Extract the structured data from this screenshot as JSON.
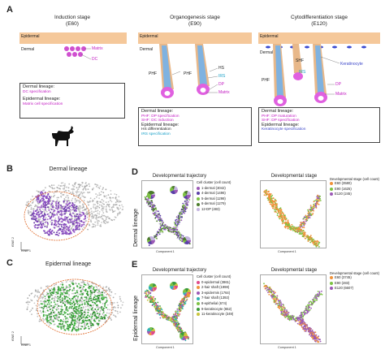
{
  "panels": {
    "a": "A",
    "b": "B",
    "c": "C",
    "d": "D",
    "e": "E"
  },
  "stages": [
    {
      "title": "Induction stage",
      "sub": "(E60)"
    },
    {
      "title": "Organogenesis stage",
      "sub": "(E90)"
    },
    {
      "title": "Cytodifferentiation stage",
      "sub": "(E120)"
    }
  ],
  "diagram_labels": {
    "epidermal": "Epidermal",
    "dermal": "Dermal",
    "matrix": "Matrix",
    "dc": "DC",
    "phf": "PHF",
    "hs": "HS",
    "irs": "IRS",
    "dp": "DP",
    "shf": "SHF",
    "keratinocyte": "Keratinocyte"
  },
  "boxes": [
    {
      "d_head": "Dermal lineage:",
      "d1": "DC specification",
      "d2": "",
      "e_head": "Epidermal lineage:",
      "e1": "Matrix cell specification",
      "e2": ""
    },
    {
      "d_head": "Dermal lineage:",
      "d1": "PHF: DP specification",
      "d2": "SHF: DC induction",
      "e_head": "Epidermal lineage:",
      "e1": "HS differentiation",
      "e2": "IRS specification"
    },
    {
      "d_head": "Dermal lineage:",
      "d1": "PHF: DP maturation",
      "d2": "SHF: DP specification",
      "e_head": "Epidermal lineage:",
      "e1": "Keratinocyte specification",
      "e2": ""
    }
  ],
  "rows": {
    "b_title": "Dermal lineage",
    "c_title": "Epidermal lineage",
    "d_row": "Dermal lineage",
    "e_row": "Epidermal lineage"
  },
  "axes": {
    "tsne1": "tSNE 1",
    "tsne2": "tSNE 2",
    "comp1": "Component 1",
    "comp2": "Component 2"
  },
  "d": {
    "traj_title": "Developmental trajectory",
    "stage_title": "Developmental stage",
    "cluster_head": "Cell cluster (cell count)",
    "clusters": [
      {
        "label": "1-dermal (3042)",
        "color": "#9b59b6"
      },
      {
        "label": "4-dermal (1496)",
        "color": "#5b3fa8"
      },
      {
        "label": "5-dermal (1298)",
        "color": "#7cc242"
      },
      {
        "label": "6-dermal (1279)",
        "color": "#4a7a2a"
      },
      {
        "label": "12-DP (483)",
        "color": "#c4b5e0"
      }
    ],
    "stage_head": "Developmental stage (cell count)",
    "stages": [
      {
        "label": "E60 (3580)",
        "color": "#f0923a"
      },
      {
        "label": "E90 (1625)",
        "color": "#7cc242"
      },
      {
        "label": "E120 (245)",
        "color": "#9b59b6"
      }
    ]
  },
  "e": {
    "traj_title": "Developmental trajectory",
    "stage_title": "Developmental stage",
    "cluster_head": "Cell cluster (cell count)",
    "clusters": [
      {
        "label": "0-epidermal (3861)",
        "color": "#e04a8a"
      },
      {
        "label": "2-hair shaft (1998)",
        "color": "#f0923a"
      },
      {
        "label": "3-epidermis (1764)",
        "color": "#9b59b6"
      },
      {
        "label": "7-hair shaft (1392)",
        "color": "#2fb3b3"
      },
      {
        "label": "8-epithelial (674)",
        "color": "#7cc242"
      },
      {
        "label": "9-keratinocyte (652)",
        "color": "#3a9a3a"
      },
      {
        "label": "11-keratinocyte (349)",
        "color": "#c9c43a"
      }
    ],
    "stage_head": "Developmental stage (cell count)",
    "stages": [
      {
        "label": "E60 (3745)",
        "color": "#f0923a"
      },
      {
        "label": "E90 (283)",
        "color": "#7cc242"
      },
      {
        "label": "E120 (6607)",
        "color": "#9b59b6"
      }
    ]
  }
}
